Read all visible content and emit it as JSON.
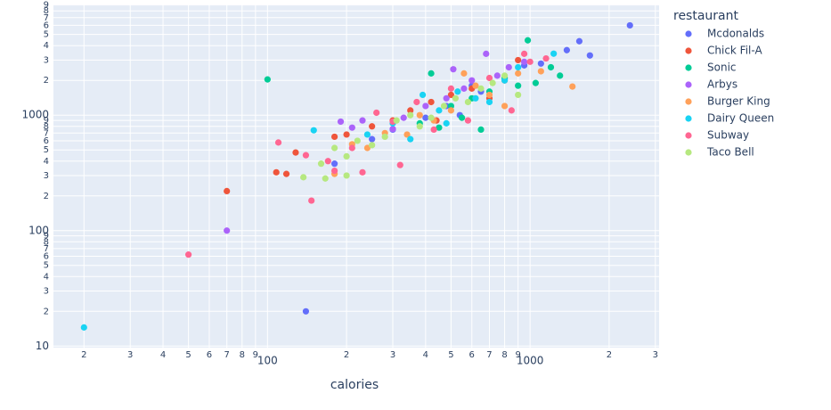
{
  "chart_data": {
    "type": "scatter",
    "x_label": "calories",
    "legend_title": "restaurant",
    "legend": "right",
    "grid": true,
    "log_x": true,
    "log_y": true,
    "xlim": [
      15.3,
      3100
    ],
    "ylim": [
      9.7,
      9100
    ],
    "xticks": [
      {
        "value": 20,
        "label": "2"
      },
      {
        "value": 30,
        "label": "3"
      },
      {
        "value": 40,
        "label": "4"
      },
      {
        "value": 50,
        "label": "5"
      },
      {
        "value": 60,
        "label": "6"
      },
      {
        "value": 70,
        "label": "7"
      },
      {
        "value": 80,
        "label": "8"
      },
      {
        "value": 90,
        "label": "9"
      },
      100,
      {
        "value": 200,
        "label": "2"
      },
      {
        "value": 300,
        "label": "3"
      },
      {
        "value": 400,
        "label": "4"
      },
      {
        "value": 500,
        "label": "5"
      },
      {
        "value": 600,
        "label": "6"
      },
      {
        "value": 700,
        "label": "7"
      },
      {
        "value": 800,
        "label": "8"
      },
      {
        "value": 900,
        "label": "9"
      },
      1000,
      {
        "value": 2000,
        "label": "2"
      },
      {
        "value": 3000,
        "label": "3"
      }
    ],
    "yticks": [
      10,
      {
        "value": 20,
        "label": "2"
      },
      {
        "value": 30,
        "label": "3"
      },
      {
        "value": 40,
        "label": "4"
      },
      {
        "value": 50,
        "label": "5"
      },
      {
        "value": 60,
        "label": "6"
      },
      {
        "value": 70,
        "label": "7"
      },
      {
        "value": 80,
        "label": "8"
      },
      {
        "value": 90,
        "label": "9"
      },
      100,
      {
        "value": 200,
        "label": "2"
      },
      {
        "value": 300,
        "label": "3"
      },
      {
        "value": 400,
        "label": "4"
      },
      {
        "value": 500,
        "label": "5"
      },
      {
        "value": 600,
        "label": "6"
      },
      {
        "value": 700,
        "label": "7"
      },
      {
        "value": 800,
        "label": "8"
      },
      {
        "value": 900,
        "label": "9"
      },
      1000,
      {
        "value": 2000,
        "label": "2"
      },
      {
        "value": 3000,
        "label": "3"
      },
      {
        "value": 4000,
        "label": "4"
      },
      {
        "value": 5000,
        "label": "5"
      },
      {
        "value": 6000,
        "label": "6"
      },
      {
        "value": 7000,
        "label": "7"
      },
      {
        "value": 8000,
        "label": "8"
      },
      {
        "value": 9000,
        "label": "9"
      }
    ],
    "series": [
      {
        "name": "Mcdonalds",
        "color": "#636efa",
        "x": [
          140,
          2400,
          1690,
          1540,
          1380,
          950,
          800,
          650,
          540,
          480,
          400,
          300,
          180,
          250,
          1100,
          600
        ],
        "values": [
          20,
          6000,
          3290,
          4370,
          3660,
          2700,
          2100,
          1600,
          1000,
          1200,
          950,
          750,
          380,
          620,
          2800,
          1800
        ]
      },
      {
        "name": "Chick Fil-A",
        "color": "#EF553B",
        "x": [
          70,
          108,
          118,
          128,
          200,
          250,
          300,
          350,
          420,
          500,
          600,
          700,
          800,
          900,
          180,
          440
        ],
        "values": [
          220,
          320,
          310,
          475,
          680,
          800,
          900,
          1100,
          1300,
          1500,
          1700,
          1400,
          2000,
          3000,
          650,
          900
        ]
      },
      {
        "name": "Sonic",
        "color": "#00cc96",
        "x": [
          100,
          980,
          1200,
          1050,
          1300,
          800,
          700,
          600,
          500,
          420,
          380,
          450,
          650,
          550,
          900
        ],
        "values": [
          2040,
          4450,
          2600,
          1900,
          2200,
          2100,
          1600,
          1400,
          1200,
          2300,
          850,
          780,
          750,
          950,
          1800
        ]
      },
      {
        "name": "Arbys",
        "color": "#ab63fa",
        "x": [
          70,
          210,
          190,
          230,
          330,
          400,
          510,
          600,
          680,
          750,
          830,
          300,
          480,
          560,
          950
        ],
        "values": [
          100,
          780,
          880,
          900,
          950,
          1200,
          2500,
          2000,
          3400,
          2200,
          2600,
          760,
          1400,
          1700,
          2900
        ]
      },
      {
        "name": "Burger King",
        "color": "#FFA15A",
        "x": [
          180,
          240,
          280,
          340,
          430,
          500,
          560,
          700,
          800,
          900,
          1100,
          1450,
          380,
          620,
          210
        ],
        "values": [
          310,
          520,
          700,
          680,
          900,
          1100,
          2300,
          1500,
          1200,
          2300,
          2400,
          1770,
          1000,
          1800,
          560
        ]
      },
      {
        "name": "Dairy Queen",
        "color": "#19d3f3",
        "x": [
          20,
          150,
          240,
          300,
          350,
          390,
          450,
          530,
          620,
          700,
          800,
          1230,
          900,
          480
        ],
        "values": [
          14.5,
          740,
          680,
          850,
          620,
          1500,
          1100,
          1600,
          1400,
          1300,
          2000,
          3410,
          2600,
          850
        ]
      },
      {
        "name": "Subway",
        "color": "#FF6692",
        "x": [
          50,
          110,
          147,
          170,
          180,
          210,
          230,
          260,
          300,
          320,
          370,
          430,
          500,
          580,
          700,
          850,
          950,
          1150,
          1000,
          140
        ],
        "values": [
          62,
          580,
          182,
          400,
          330,
          520,
          320,
          1050,
          880,
          370,
          1300,
          750,
          1700,
          900,
          2100,
          1100,
          3400,
          3100,
          2900,
          450
        ]
      },
      {
        "name": "Taco Bell",
        "color": "#B6E880",
        "x": [
          137,
          166,
          160,
          180,
          200,
          220,
          250,
          280,
          310,
          350,
          380,
          420,
          470,
          520,
          580,
          650,
          720,
          800,
          900,
          200
        ],
        "values": [
          290,
          283,
          380,
          520,
          440,
          600,
          550,
          650,
          900,
          1000,
          800,
          950,
          1200,
          1400,
          1300,
          1700,
          1900,
          2200,
          1500,
          300
        ]
      }
    ]
  }
}
